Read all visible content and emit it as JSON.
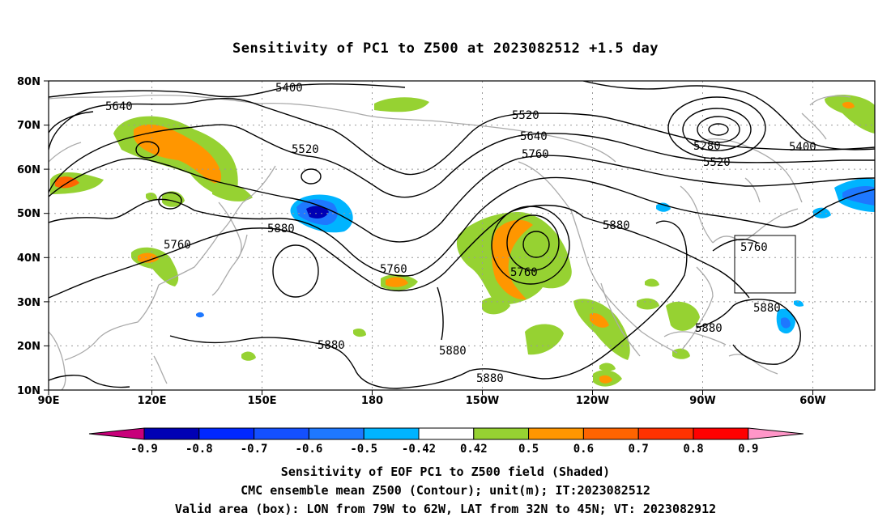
{
  "title": "Sensitivity of PC1 to Z500 at 2023082512 +1.5 day",
  "axes": {
    "lat_labels": [
      "80N",
      "70N",
      "60N",
      "50N",
      "40N",
      "30N",
      "20N",
      "10N"
    ],
    "lon_labels": [
      "90E",
      "120E",
      "150E",
      "180",
      "150W",
      "120W",
      "90W",
      "60W"
    ]
  },
  "contour_labels": [
    {
      "id": "c5400a",
      "text": "5400"
    },
    {
      "id": "c5640a",
      "text": "5640"
    },
    {
      "id": "c5520a",
      "text": "5520"
    },
    {
      "id": "c5520b",
      "text": "5520"
    },
    {
      "id": "c5640b",
      "text": "5640"
    },
    {
      "id": "c5760a",
      "text": "5760"
    },
    {
      "id": "c5280",
      "text": "5280"
    },
    {
      "id": "c5400b",
      "text": "5400"
    },
    {
      "id": "c5520c",
      "text": "5520"
    },
    {
      "id": "c5880a",
      "text": "5880"
    },
    {
      "id": "c5760b",
      "text": "5760"
    },
    {
      "id": "c5760c",
      "text": "5760"
    },
    {
      "id": "c5760d",
      "text": "5760"
    },
    {
      "id": "c5880b",
      "text": "5880"
    },
    {
      "id": "c5760e",
      "text": "5760"
    },
    {
      "id": "c5880c",
      "text": "5880"
    },
    {
      "id": "c5880d",
      "text": "5880"
    },
    {
      "id": "c5880e",
      "text": "5880"
    },
    {
      "id": "c5880f",
      "text": "5880"
    },
    {
      "id": "c5880g",
      "text": "5880"
    }
  ],
  "colorbar": {
    "labels": [
      "-0.9",
      "-0.8",
      "-0.7",
      "-0.6",
      "-0.5",
      "-0.42",
      "0.42",
      "0.5",
      "0.6",
      "0.7",
      "0.8",
      "0.9"
    ],
    "colors": [
      "#c8007a",
      "#0000b4",
      "#0028ff",
      "#1450ff",
      "#1e78ff",
      "#00b4ff",
      "#ffffff",
      "#96d232",
      "#ff9600",
      "#ff6400",
      "#ff3200",
      "#ff0000",
      "#ff96c8"
    ]
  },
  "valid_box": {
    "lon_west": -79,
    "lon_east": -62,
    "lat_south": 32,
    "lat_north": 45
  },
  "captions": [
    "Sensitivity of EOF PC1 to Z500 field (Shaded)",
    "CMC ensemble mean Z500 (Contour); unit(m); IT:2023082512",
    "Valid area (box): LON from 79W to 62W, LAT from 32N to 45N; VT: 2023082912"
  ]
}
